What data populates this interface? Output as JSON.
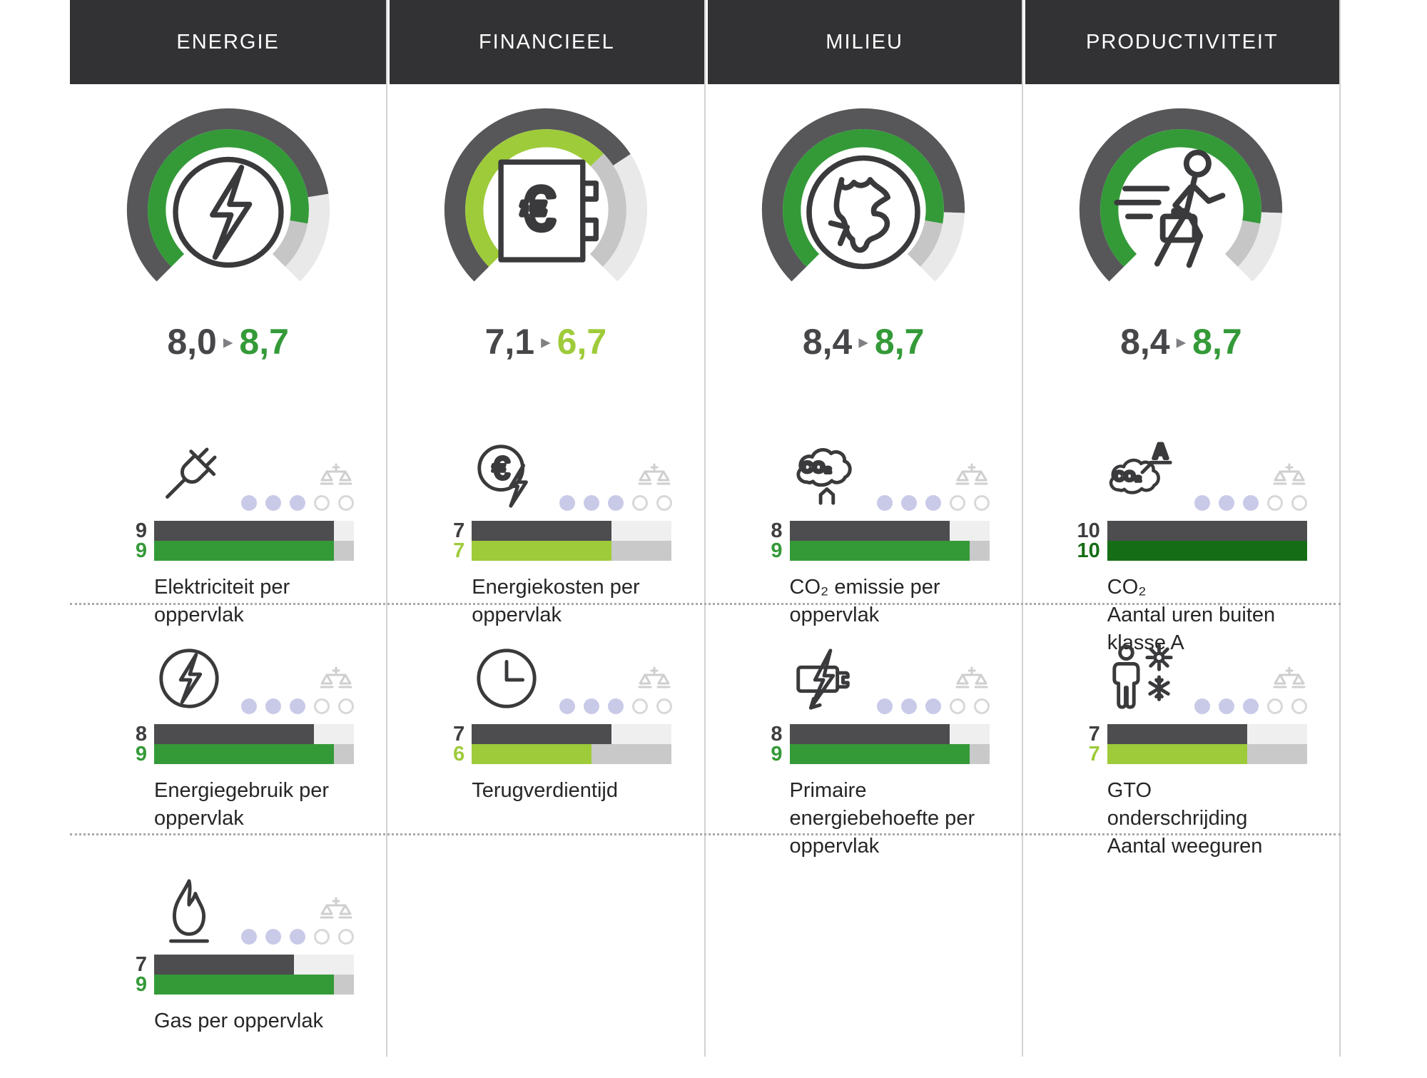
{
  "colors": {
    "header_bg": "#323234",
    "divider": "#d2d2d2",
    "dark_bar": "#4d4d4f",
    "arc_dark": "#57575a",
    "arc_rest_outer": "#e9e9ea",
    "arc_rest_inner": "#c6c6c7",
    "green": "#349a38",
    "lightgreen": "#9ecb3a",
    "darkgreen": "#156e15",
    "dot_filled": "#c9cae8",
    "dot_empty_border": "#d8d8d8",
    "number_dark": "#3f3f41",
    "arrow_gray": "#808084",
    "icon_stroke": "#3a3a3c",
    "scale_icon_gray": "#cfcfcf"
  },
  "arrow_glyph": "▸",
  "columns": [
    {
      "header": "ENERGIE",
      "gauge": {
        "icon": "energy-bolt",
        "old": "8,0",
        "new": "8,7",
        "old_val": 8.0,
        "new_val": 8.7,
        "color": "green"
      },
      "indicators": [
        {
          "icon": "plug",
          "old": 9,
          "new": 9,
          "color": "green",
          "dots_filled": 3,
          "dots_total": 5,
          "label": "Elektriciteit per\noppervlak"
        },
        {
          "icon": "energy-bolt",
          "old": 8,
          "new": 9,
          "color": "green",
          "dots_filled": 3,
          "dots_total": 5,
          "label": "Energiegebruik per\noppervlak"
        },
        {
          "icon": "flame",
          "old": 7,
          "new": 9,
          "color": "green",
          "dots_filled": 3,
          "dots_total": 5,
          "label": "Gas per oppervlak"
        }
      ]
    },
    {
      "header": "FINANCIEEL",
      "gauge": {
        "icon": "safe-euro",
        "old": "7,1",
        "new": "6,7",
        "old_val": 7.1,
        "new_val": 6.7,
        "color": "lightgreen"
      },
      "indicators": [
        {
          "icon": "euro-bolt",
          "old": 7,
          "new": 7,
          "color": "lightgreen",
          "dots_filled": 3,
          "dots_total": 5,
          "label": "Energiekosten per\noppervlak"
        },
        {
          "icon": "clock",
          "old": 7,
          "new": 6,
          "color": "lightgreen",
          "dots_filled": 3,
          "dots_total": 5,
          "label": "Terugverdientijd"
        }
      ]
    },
    {
      "header": "MILIEU",
      "gauge": {
        "icon": "globe",
        "old": "8,4",
        "new": "8,7",
        "old_val": 8.4,
        "new_val": 8.7,
        "color": "green"
      },
      "indicators": [
        {
          "icon": "co2-cloud",
          "old": 8,
          "new": 9,
          "color": "green",
          "dots_filled": 3,
          "dots_total": 5,
          "label": "CO₂ emissie per\noppervlak"
        },
        {
          "icon": "battery-bolt",
          "old": 8,
          "new": 9,
          "color": "green",
          "dots_filled": 3,
          "dots_total": 5,
          "label": "Primaire\nenergiebehoefte per\noppervlak"
        }
      ]
    },
    {
      "header": "PRODUCTIVITEIT",
      "gauge": {
        "icon": "walking-person",
        "old": "8,4",
        "new": "8,7",
        "old_val": 8.4,
        "new_val": 8.7,
        "color": "green"
      },
      "indicators": [
        {
          "icon": "co2-cloud-a",
          "old": 10,
          "new": 10,
          "color": "darkgreen",
          "dots_filled": 3,
          "dots_total": 5,
          "label": "CO₂\nAantal uren buiten\nklasse A"
        },
        {
          "icon": "person-sun-snow",
          "old": 7,
          "new": 7,
          "color": "lightgreen",
          "dots_filled": 3,
          "dots_total": 5,
          "label": "GTO\nonderschrijding\nAantal weeguren"
        }
      ]
    }
  ],
  "chart_data": [
    {
      "type": "gauge",
      "title": "ENERGIE",
      "range": [
        0,
        10
      ],
      "old": 8.0,
      "new": 8.7,
      "indicators": [
        {
          "label": "Elektriciteit per oppervlak",
          "old": 9,
          "new": 9,
          "rating_dots": "3/5"
        },
        {
          "label": "Energiegebruik per oppervlak",
          "old": 8,
          "new": 9,
          "rating_dots": "3/5"
        },
        {
          "label": "Gas per oppervlak",
          "old": 7,
          "new": 9,
          "rating_dots": "3/5"
        }
      ]
    },
    {
      "type": "gauge",
      "title": "FINANCIEEL",
      "range": [
        0,
        10
      ],
      "old": 7.1,
      "new": 6.7,
      "indicators": [
        {
          "label": "Energiekosten per oppervlak",
          "old": 7,
          "new": 7,
          "rating_dots": "3/5"
        },
        {
          "label": "Terugverdientijd",
          "old": 7,
          "new": 6,
          "rating_dots": "3/5"
        }
      ]
    },
    {
      "type": "gauge",
      "title": "MILIEU",
      "range": [
        0,
        10
      ],
      "old": 8.4,
      "new": 8.7,
      "indicators": [
        {
          "label": "CO₂ emissie per oppervlak",
          "old": 8,
          "new": 9,
          "rating_dots": "3/5"
        },
        {
          "label": "Primaire energiebehoefte per oppervlak",
          "old": 8,
          "new": 9,
          "rating_dots": "3/5"
        }
      ]
    },
    {
      "type": "gauge",
      "title": "PRODUCTIVITEIT",
      "range": [
        0,
        10
      ],
      "old": 8.4,
      "new": 8.7,
      "indicators": [
        {
          "label": "CO₂ Aantal uren buiten klasse A",
          "old": 10,
          "new": 10,
          "rating_dots": "3/5"
        },
        {
          "label": "GTO onderschrijding Aantal weeguren",
          "old": 7,
          "new": 7,
          "rating_dots": "3/5"
        }
      ]
    }
  ]
}
